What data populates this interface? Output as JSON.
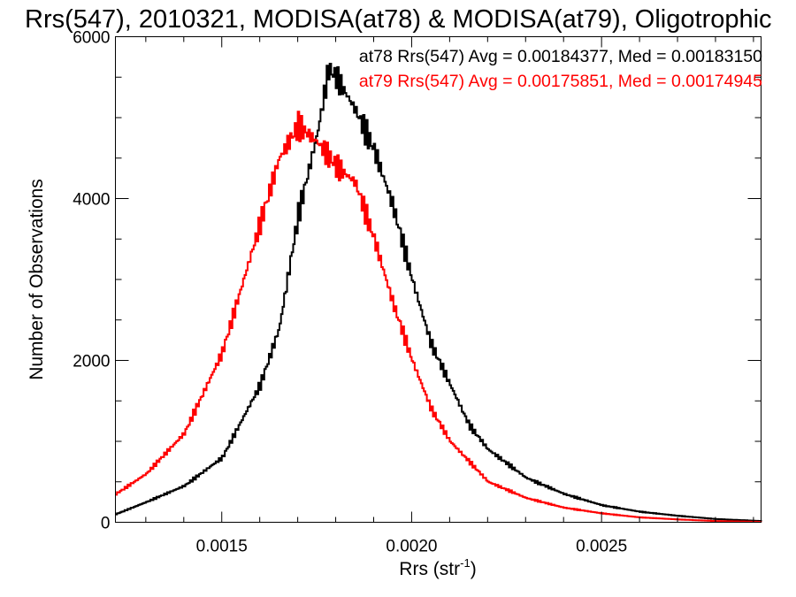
{
  "chart_data": {
    "type": "line",
    "title": "Rrs(547), 2010321, MODISA(at78) & MODISA(at79), Oligotrophic",
    "xlabel": "Rrs (str",
    "xlabel_superscript": "-1",
    "xlabel_suffix": ")",
    "ylabel": "Number of Observations",
    "xlim": [
      0.00122,
      0.00292
    ],
    "ylim": [
      0,
      6000
    ],
    "x_ticks": [
      0.0015,
      0.002,
      0.0025
    ],
    "x_tick_labels": [
      "0.0015",
      "0.0020",
      "0.0025"
    ],
    "y_ticks": [
      0,
      2000,
      4000,
      6000
    ],
    "y_tick_labels": [
      "0",
      "2000",
      "4000",
      "6000"
    ],
    "grid": false,
    "legend_position": "top-right",
    "legend": [
      "at78 Rrs(547) Avg = 0.00184377, Med = 0.00183150",
      "at79 Rrs(547) Avg = 0.00175851, Med = 0.00174945"
    ],
    "series": [
      {
        "name": "at78",
        "color": "#000000",
        "x": [
          0.00122,
          0.0013,
          0.0014,
          0.0015,
          0.0016,
          0.00165,
          0.0017,
          0.00175,
          0.00178,
          0.0018,
          0.00185,
          0.0019,
          0.00195,
          0.002,
          0.00205,
          0.0021,
          0.00215,
          0.0022,
          0.0023,
          0.0024,
          0.0025,
          0.0026,
          0.0027,
          0.0028,
          0.00292
        ],
        "values": [
          100,
          250,
          450,
          800,
          1700,
          2400,
          3800,
          4800,
          5600,
          5500,
          5100,
          4600,
          3900,
          3000,
          2200,
          1700,
          1200,
          900,
          550,
          350,
          210,
          130,
          80,
          40,
          15
        ]
      },
      {
        "name": "at79",
        "color": "#ff0000",
        "x": [
          0.00122,
          0.0013,
          0.0014,
          0.0015,
          0.0016,
          0.00165,
          0.0017,
          0.00175,
          0.0018,
          0.00185,
          0.0019,
          0.00195,
          0.002,
          0.00205,
          0.0021,
          0.00215,
          0.0022,
          0.0023,
          0.0024,
          0.0025,
          0.0026,
          0.0027,
          0.0028,
          0.00292
        ],
        "values": [
          350,
          600,
          1100,
          2100,
          3700,
          4500,
          4900,
          4700,
          4400,
          4200,
          3500,
          2700,
          2000,
          1400,
          1000,
          750,
          500,
          300,
          180,
          110,
          60,
          35,
          15,
          5
        ]
      }
    ]
  }
}
